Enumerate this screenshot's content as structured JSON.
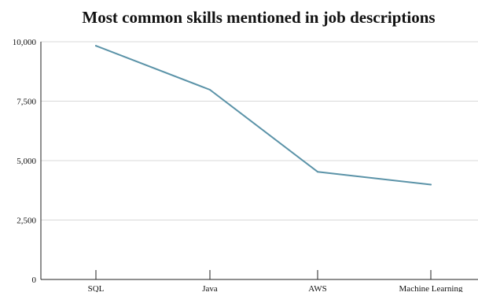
{
  "chart_data": {
    "type": "line",
    "title": "Most common skills mentioned in job descriptions",
    "xlabel": "",
    "ylabel": "",
    "categories": [
      "SQL",
      "Java",
      "AWS",
      "Machine Learning"
    ],
    "series": [
      {
        "values": [
          9830,
          7980,
          4530,
          3990
        ]
      }
    ],
    "ylim": [
      0,
      10000
    ],
    "yticks": [
      0,
      2500,
      5000,
      7500,
      10000
    ],
    "ytick_labels": [
      "0",
      "2,500",
      "5,000",
      "7,500",
      "10,000"
    ],
    "grid": true,
    "legend": "none",
    "colors": {
      "line": "#5b93a8",
      "grid": "#d9d9d9",
      "axis": "#222222"
    }
  }
}
